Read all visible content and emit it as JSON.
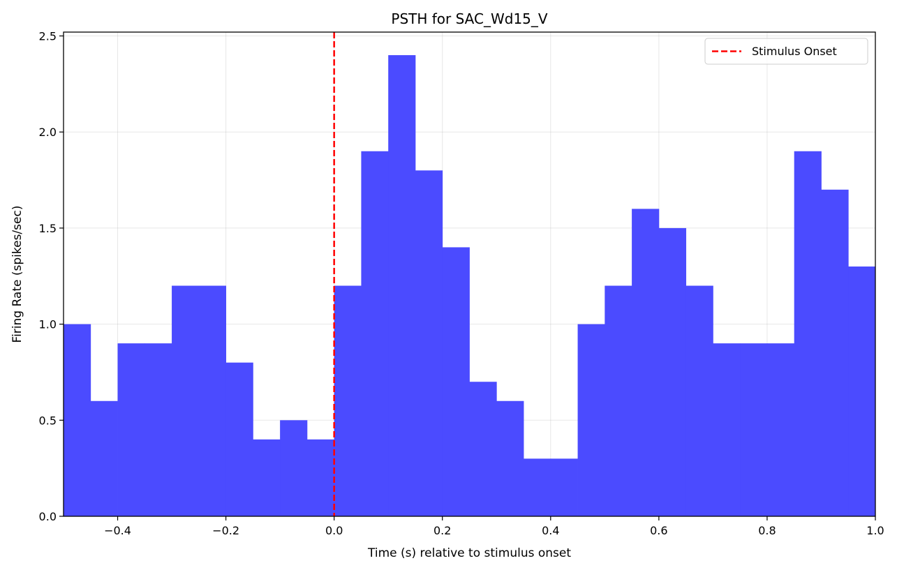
{
  "chart_data": {
    "type": "bar",
    "title": "PSTH for SAC_Wd15_V",
    "xlabel": "Time (s) relative to stimulus onset",
    "ylabel": "Firing Rate (spikes/sec)",
    "xlim": [
      -0.5,
      1.0
    ],
    "ylim": [
      0,
      2.52
    ],
    "xticks": [
      -0.4,
      -0.2,
      0.0,
      0.2,
      0.4,
      0.6,
      0.8,
      1.0
    ],
    "xtick_labels": [
      "−0.4",
      "−0.2",
      "0.0",
      "0.2",
      "0.4",
      "0.6",
      "0.8",
      "1.0"
    ],
    "yticks": [
      0.0,
      0.5,
      1.0,
      1.5,
      2.0,
      2.5
    ],
    "ytick_labels": [
      "0.0",
      "0.5",
      "1.0",
      "1.5",
      "2.0",
      "2.5"
    ],
    "grid": true,
    "bin_width": 0.05,
    "bin_starts": [
      -0.5,
      -0.45,
      -0.4,
      -0.35,
      -0.3,
      -0.25,
      -0.2,
      -0.15,
      -0.1,
      -0.05,
      0.0,
      0.05,
      0.1,
      0.15,
      0.2,
      0.25,
      0.3,
      0.35,
      0.4,
      0.45,
      0.5,
      0.55,
      0.6,
      0.65,
      0.7,
      0.75,
      0.8,
      0.85,
      0.9,
      0.95
    ],
    "values": [
      1.0,
      0.6,
      0.9,
      0.9,
      1.2,
      1.2,
      0.8,
      0.4,
      0.5,
      0.4,
      1.2,
      1.9,
      2.4,
      1.8,
      1.4,
      0.7,
      0.6,
      0.3,
      0.3,
      1.0,
      1.2,
      1.6,
      1.5,
      1.2,
      0.9,
      0.9,
      0.9,
      1.9,
      1.7,
      1.3
    ],
    "bar_color": "#4b4bff",
    "stimulus_onset": 0.0,
    "onset_color": "#ff0000",
    "legend": {
      "position": "top-right",
      "entries": [
        "Stimulus Onset"
      ]
    }
  }
}
